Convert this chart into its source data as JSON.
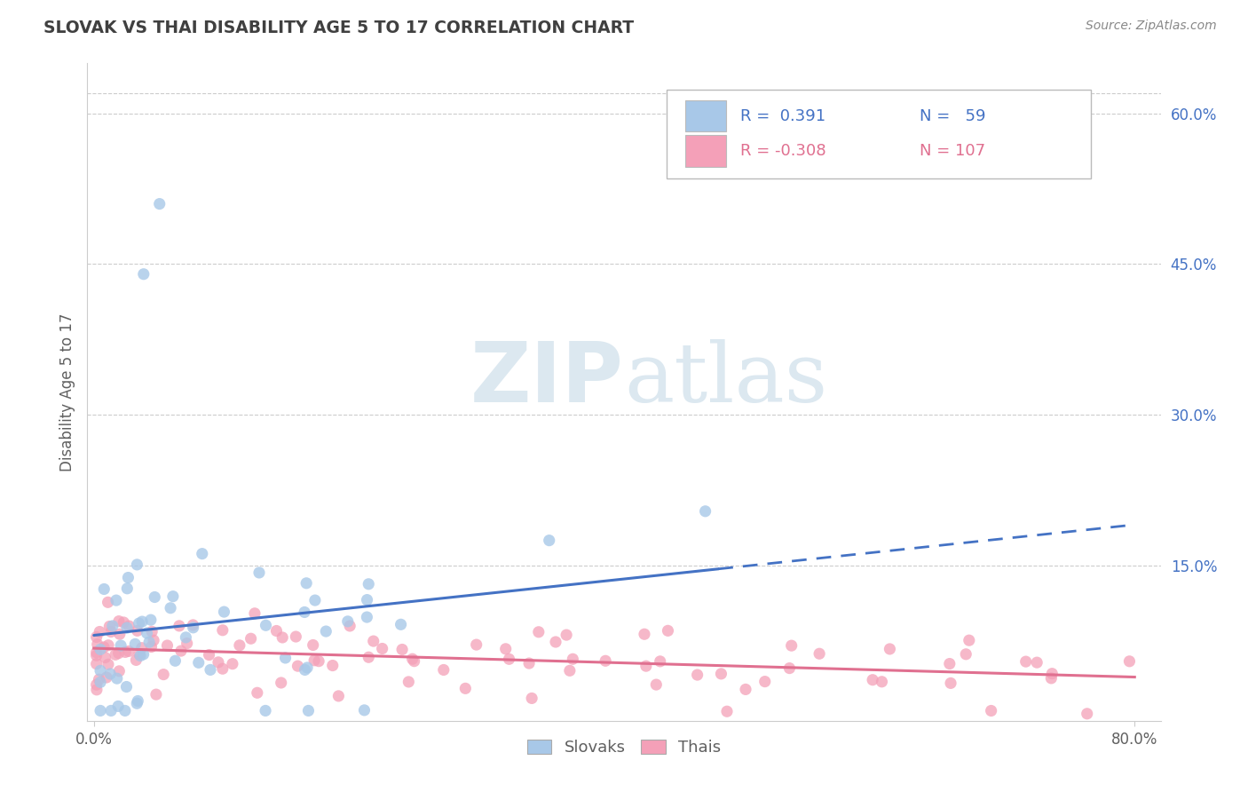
{
  "title": "SLOVAK VS THAI DISABILITY AGE 5 TO 17 CORRELATION CHART",
  "source": "Source: ZipAtlas.com",
  "ylabel": "Disability Age 5 to 17",
  "xlim": [
    -0.005,
    0.82
  ],
  "ylim": [
    -0.005,
    0.65
  ],
  "y_ticks": [
    0.0,
    0.15,
    0.3,
    0.45,
    0.6
  ],
  "y_tick_labels": [
    "",
    "15.0%",
    "30.0%",
    "45.0%",
    "60.0%"
  ],
  "x_ticks": [
    0.0,
    0.8
  ],
  "x_tick_labels": [
    "0.0%",
    "80.0%"
  ],
  "slovak_color": "#a8c8e8",
  "thai_color": "#f4a0b8",
  "slovak_line_color": "#4472c4",
  "thai_line_color": "#e07090",
  "slovak_R": 0.391,
  "slovak_N": 59,
  "thai_R": -0.308,
  "thai_N": 107,
  "grid_color": "#cccccc",
  "background_color": "#ffffff",
  "watermark_zip": "ZIP",
  "watermark_atlas": "atlas",
  "watermark_color": "#dce8f0",
  "tick_color": "#4472c4",
  "title_color": "#404040",
  "source_color": "#888888",
  "label_color": "#606060"
}
